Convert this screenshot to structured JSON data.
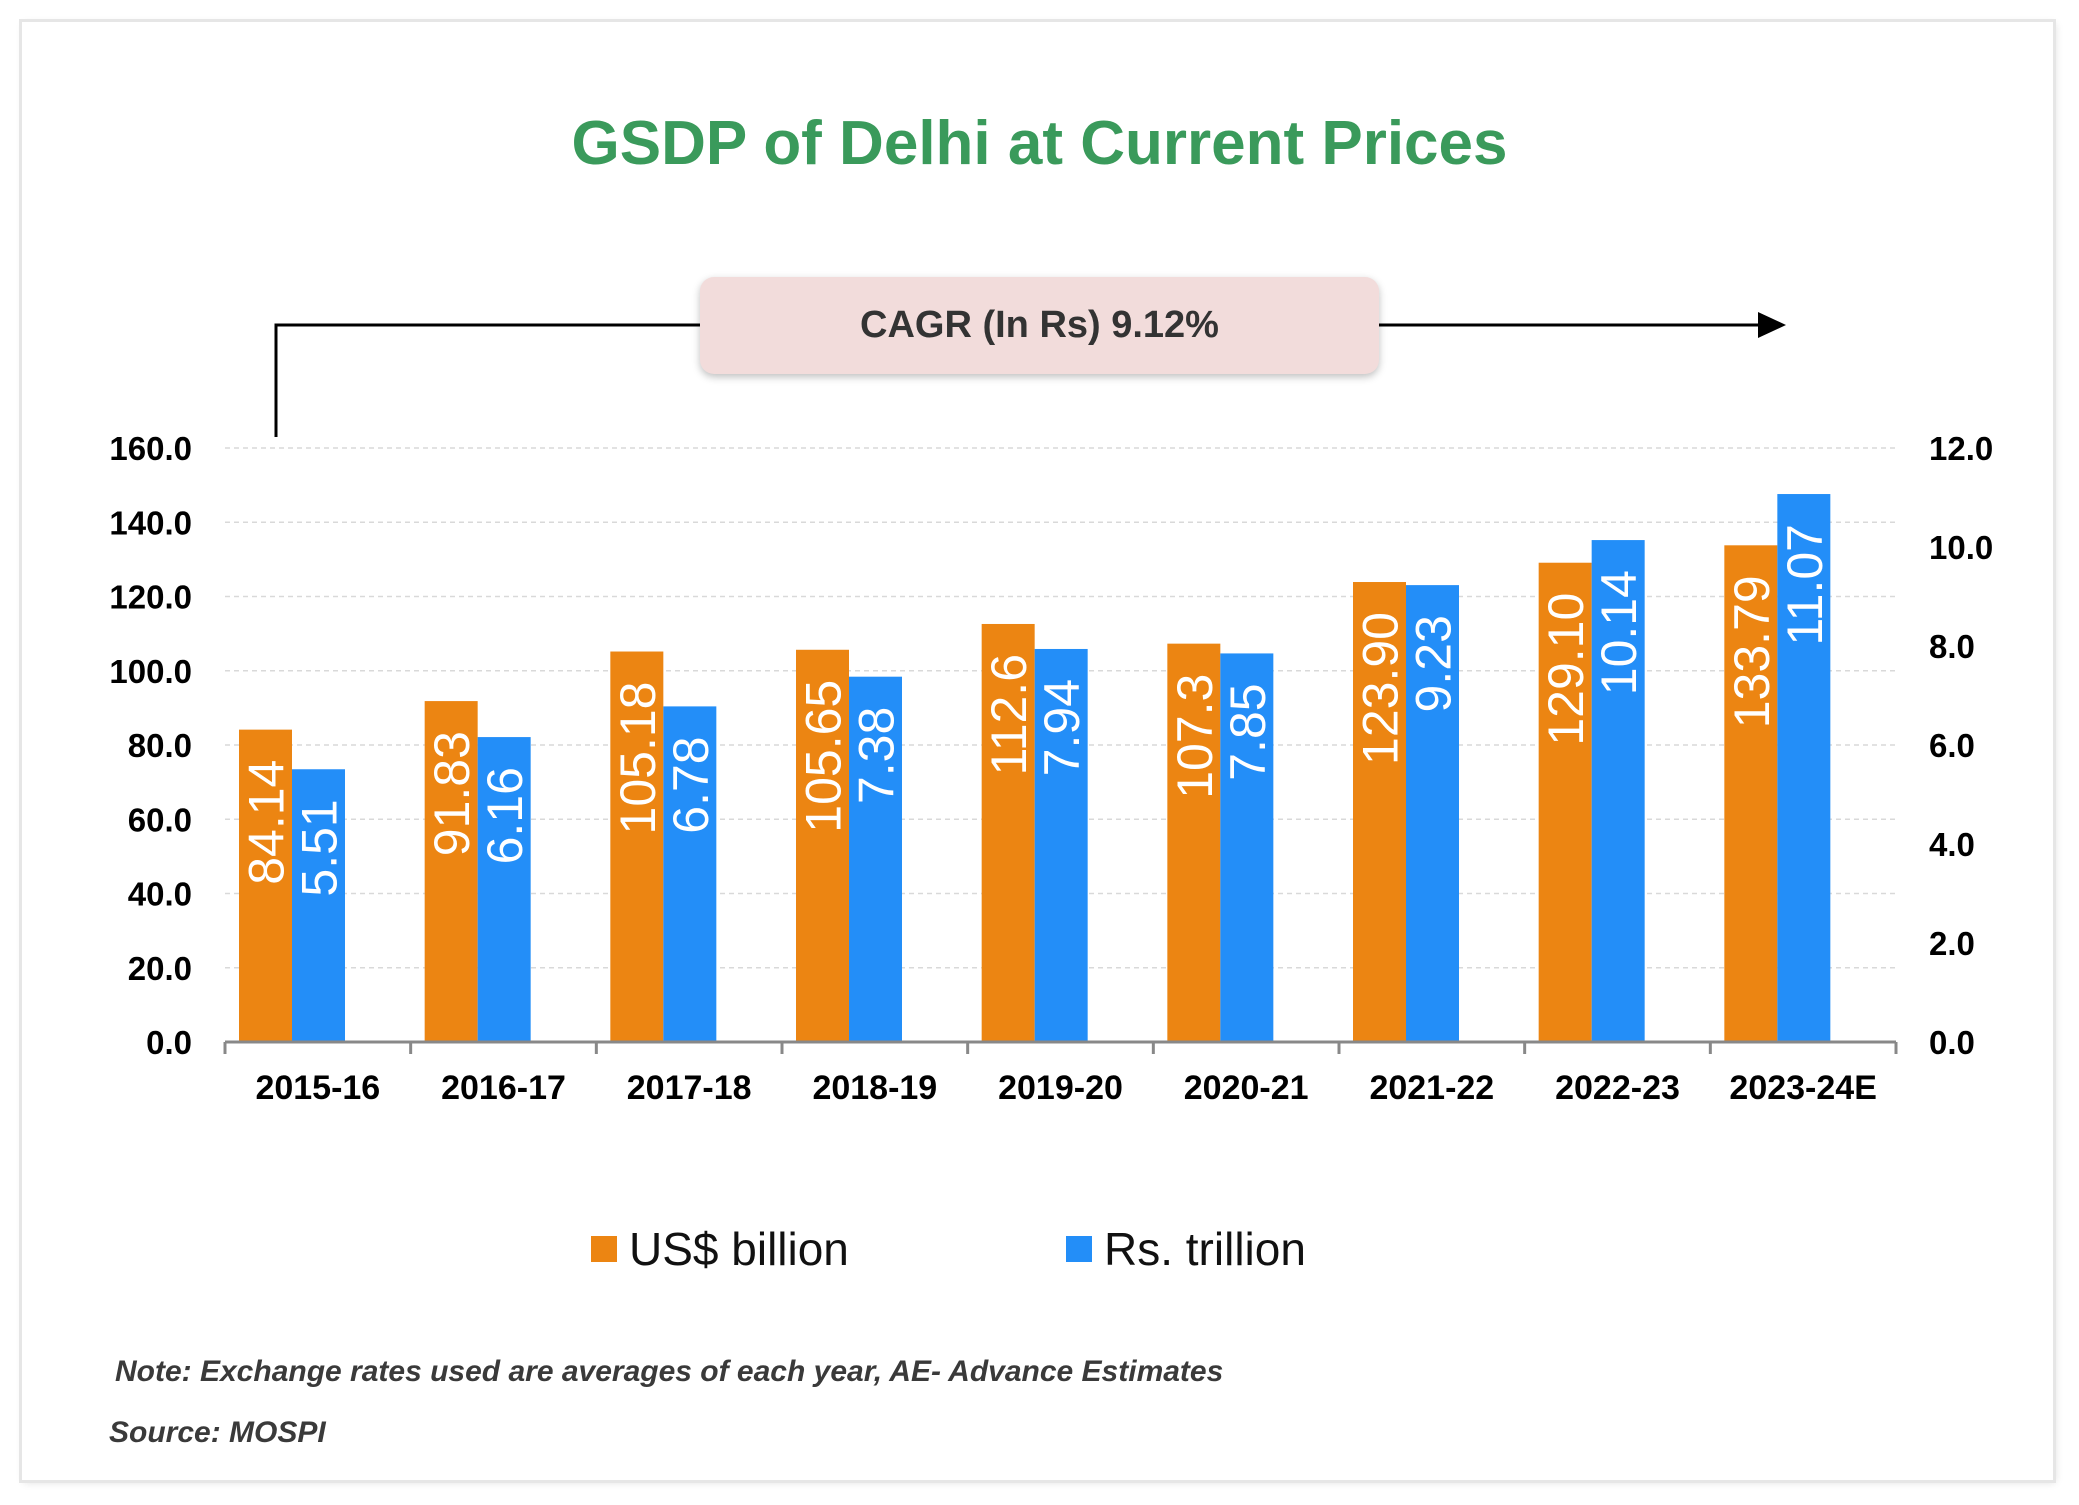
{
  "chart_data": {
    "type": "bar",
    "title": "GSDP of Delhi at Current Prices",
    "categories": [
      "2015-16",
      "2016-17",
      "2017-18",
      "2018-19",
      "2019-20",
      "2020-21",
      "2021-22",
      "2022-23",
      "2023-24E"
    ],
    "series": [
      {
        "name": "US$ billion",
        "axis": "left",
        "color": "#ec8512",
        "values": [
          84.14,
          91.83,
          105.18,
          105.65,
          112.6,
          107.3,
          123.9,
          129.1,
          133.79
        ],
        "labels": [
          "84.14",
          "91.83",
          "105.18",
          "105.65",
          "112.6",
          "107.3",
          "123.90",
          "129.10",
          "133.79"
        ]
      },
      {
        "name": "Rs. trillion",
        "axis": "right",
        "color": "#238ef8",
        "values": [
          5.51,
          6.16,
          6.78,
          7.38,
          7.94,
          7.85,
          9.23,
          10.14,
          11.07
        ],
        "labels": [
          "5.51",
          "6.16",
          "6.78",
          "7.38",
          "7.94",
          "7.85",
          "9.23",
          "10.14",
          "11.07"
        ]
      }
    ],
    "left_axis": {
      "range": [
        0,
        160
      ],
      "ticks": [
        "0.0",
        "20.0",
        "40.0",
        "60.0",
        "80.0",
        "100.0",
        "120.0",
        "140.0",
        "160.0"
      ]
    },
    "right_axis": {
      "range": [
        0,
        12
      ],
      "ticks": [
        "0.0",
        "2.0",
        "4.0",
        "6.0",
        "8.0",
        "10.0",
        "12.0"
      ]
    },
    "grid": true,
    "legend_position": "bottom",
    "annotation": "CAGR (In Rs) 9.12%"
  },
  "footer": {
    "note": "Note: Exchange rates used are averages of each year, AE- Advance Estimates",
    "source": "Source: MOSPI"
  }
}
